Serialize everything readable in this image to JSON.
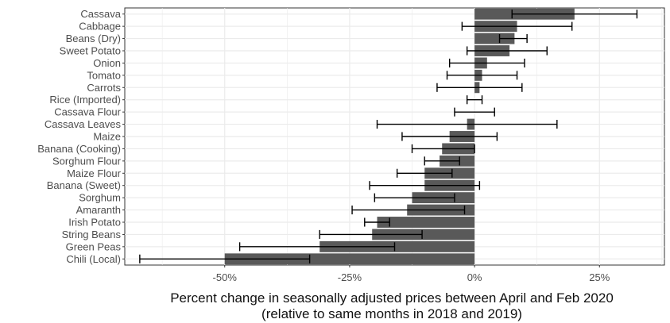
{
  "chart_data": {
    "type": "bar",
    "orientation": "horizontal",
    "categories": [
      "Cassava",
      "Cabbage",
      "Beans (Dry)",
      "Sweet Potato",
      "Onion",
      "Tomato",
      "Carrots",
      "Rice (Imported)",
      "Cassava Flour",
      "Cassava Leaves",
      "Maize",
      "Banana (Cooking)",
      "Sorghum Flour",
      "Maize Flour",
      "Banana (Sweet)",
      "Sorghum",
      "Amaranth",
      "Irish Potato",
      "String Beans",
      "Green Peas",
      "Chili (Local)"
    ],
    "values": [
      20,
      8.5,
      8,
      7,
      2.5,
      1.5,
      1,
      0,
      0,
      -1.5,
      -5,
      -6.5,
      -7,
      -10,
      -10,
      -12.5,
      -13.5,
      -19.5,
      -20.5,
      -31,
      -50
    ],
    "error_low": [
      7.5,
      -2.5,
      5,
      -1.5,
      -5,
      -5.5,
      -7.5,
      -1.5,
      -4,
      -19.5,
      -14.5,
      -12.5,
      -10,
      -15.5,
      -21,
      -20,
      -24.5,
      -22,
      -31,
      -47,
      -67
    ],
    "error_high": [
      32.5,
      19.5,
      10.5,
      14.5,
      10,
      8.5,
      9.5,
      1.5,
      4,
      16.5,
      4.5,
      0,
      -3,
      -4.5,
      1,
      -4,
      -2,
      -17,
      -10.5,
      -16,
      -33
    ],
    "xlim": [
      -70,
      38
    ],
    "xticks": [
      -50,
      -25,
      0,
      25
    ],
    "xtick_labels": [
      "-50%",
      "-25%",
      "0%",
      "25%"
    ],
    "xlabel_line1": "Percent change in seasonally adjusted prices between April and Feb 2020",
    "xlabel_line2": "(relative to same months in 2018 and 2019)",
    "ylabel": "",
    "grid": true,
    "bar_color": "#595959",
    "panel_background": "#ffffff",
    "grid_color": "#ebebeb"
  }
}
